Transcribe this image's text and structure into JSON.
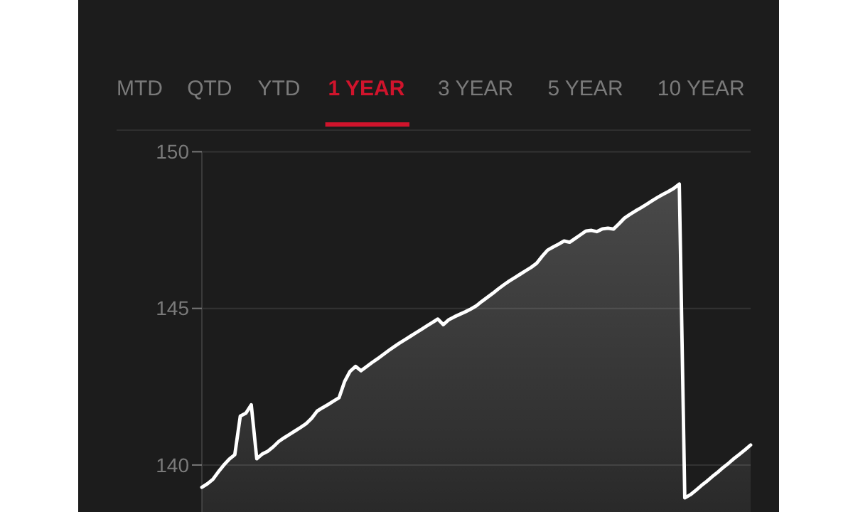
{
  "chart_data": {
    "type": "area",
    "annotations": [
      "MTD",
      "QTD",
      "YTD",
      "1 YEAR",
      "3 YEAR",
      "5 YEAR",
      "10 YEAR"
    ],
    "categories": [
      null,
      null,
      null,
      null,
      null,
      null,
      null,
      null,
      null,
      null,
      null,
      null,
      null,
      null,
      null,
      null,
      null,
      null,
      null,
      null,
      null,
      null,
      null,
      null,
      null,
      null,
      null,
      null,
      null,
      null,
      null,
      null,
      null,
      null,
      null,
      null,
      null,
      null,
      null,
      null,
      null,
      null,
      null,
      null,
      null,
      null,
      null,
      null,
      null,
      null,
      null,
      null,
      null,
      null,
      null,
      null,
      null,
      null,
      null,
      null,
      null,
      null,
      null,
      null,
      null,
      null,
      null,
      null,
      null,
      null,
      null,
      null,
      null,
      null,
      null,
      null,
      null,
      null,
      null,
      null,
      null,
      null,
      null,
      null,
      null,
      null,
      null,
      null,
      null,
      null,
      null,
      null,
      null,
      null,
      null,
      null,
      null,
      null,
      null,
      null,
      null
    ],
    "ylim": [
      138.5,
      150
    ],
    "yticks": [
      140,
      145,
      150
    ],
    "tick_labels": "y",
    "grid": "y",
    "series": [
      {
        "color": "#ffffff",
        "values": [
          139.29,
          139.4,
          139.54,
          139.78,
          140.0,
          140.19,
          140.33,
          141.56,
          141.65,
          141.92,
          140.2,
          140.35,
          140.44,
          140.58,
          140.75,
          140.87,
          140.98,
          141.09,
          141.2,
          141.32,
          141.49,
          141.72,
          141.83,
          141.93,
          142.04,
          142.15,
          142.66,
          142.99,
          143.15,
          143.01,
          143.14,
          143.27,
          143.39,
          143.52,
          143.65,
          143.77,
          143.89,
          144.0,
          144.11,
          144.22,
          144.33,
          144.44,
          144.55,
          144.66,
          144.48,
          144.64,
          144.73,
          144.81,
          144.89,
          144.98,
          145.08,
          145.22,
          145.35,
          145.48,
          145.62,
          145.75,
          145.87,
          145.98,
          146.09,
          146.2,
          146.31,
          146.44,
          146.66,
          146.86,
          146.96,
          147.05,
          147.15,
          147.11,
          147.23,
          147.35,
          147.47,
          147.49,
          147.45,
          147.54,
          147.56,
          147.53,
          147.7,
          147.88,
          148.0,
          148.11,
          148.21,
          148.32,
          148.43,
          148.54,
          148.64,
          148.73,
          148.83,
          148.97,
          138.95,
          139.05,
          139.19,
          139.34,
          139.48,
          139.63,
          139.77,
          139.92,
          140.06,
          140.21,
          140.35,
          140.49,
          140.64
        ]
      }
    ]
  }
}
